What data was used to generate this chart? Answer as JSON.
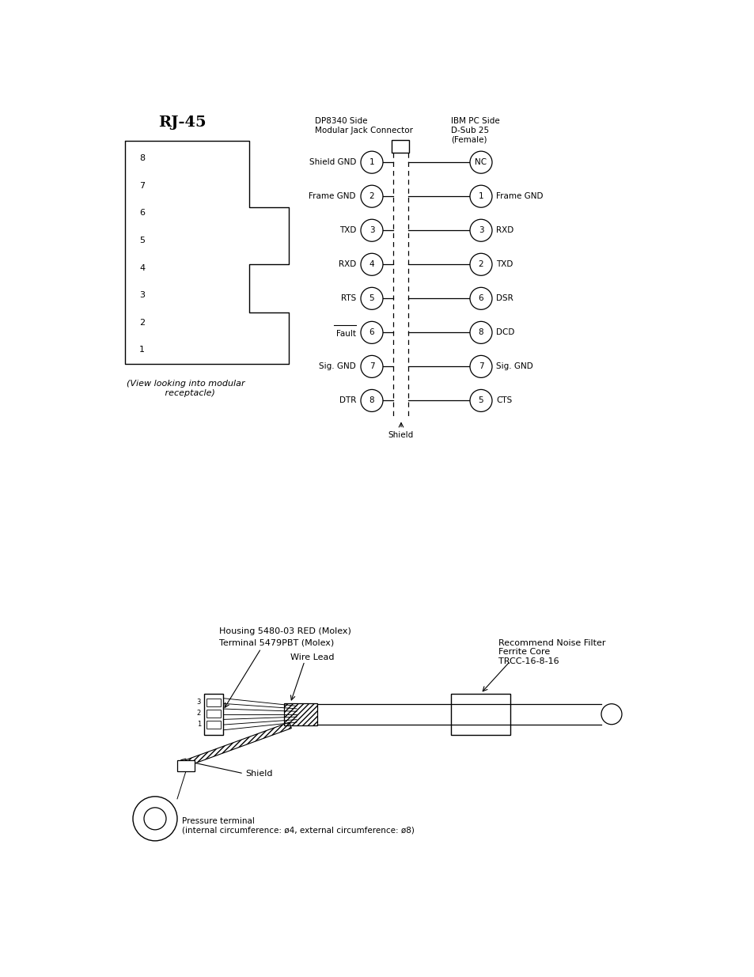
{
  "bg_color": "#ffffff",
  "rj45_label": "RJ-45",
  "rj45_pins": [
    "8",
    "7",
    "6",
    "5",
    "4",
    "3",
    "2",
    "1"
  ],
  "rj45_caption": "(View looking into modular\n   receptacle)",
  "dp_header": "DP8340 Side\nModular Jack Connector",
  "ibm_header": "IBM PC Side\nD-Sub 25\n(Female)",
  "left_pins": [
    {
      "num": "1",
      "label": "Shield GND"
    },
    {
      "num": "2",
      "label": "Frame GND"
    },
    {
      "num": "3",
      "label": "TXD"
    },
    {
      "num": "4",
      "label": "RXD"
    },
    {
      "num": "5",
      "label": "RTS"
    },
    {
      "num": "6",
      "label": "Fault",
      "overline": true
    },
    {
      "num": "7",
      "label": "Sig. GND"
    },
    {
      "num": "8",
      "label": "DTR"
    }
  ],
  "right_pins": [
    {
      "num": "NC",
      "label": ""
    },
    {
      "num": "1",
      "label": "Frame GND"
    },
    {
      "num": "3",
      "label": "RXD"
    },
    {
      "num": "2",
      "label": "TXD"
    },
    {
      "num": "6",
      "label": "DSR"
    },
    {
      "num": "8",
      "label": "DCD"
    },
    {
      "num": "7",
      "label": "Sig. GND"
    },
    {
      "num": "5",
      "label": "CTS"
    }
  ],
  "shield_label": "Shield",
  "cable_label1": "Housing 5480-03 RED (Molex)",
  "cable_label2": "Terminal 5479PBT (Molex)",
  "wire_lead_label": "Wire Lead",
  "noise_label": "Recommend Noise Filter\nFerrite Core\nTRCC-16-8-16",
  "shield_label2": "Shield",
  "pressure_label": "Pressure terminal\n(internal circumference: ø4, external circumference: ø8)"
}
